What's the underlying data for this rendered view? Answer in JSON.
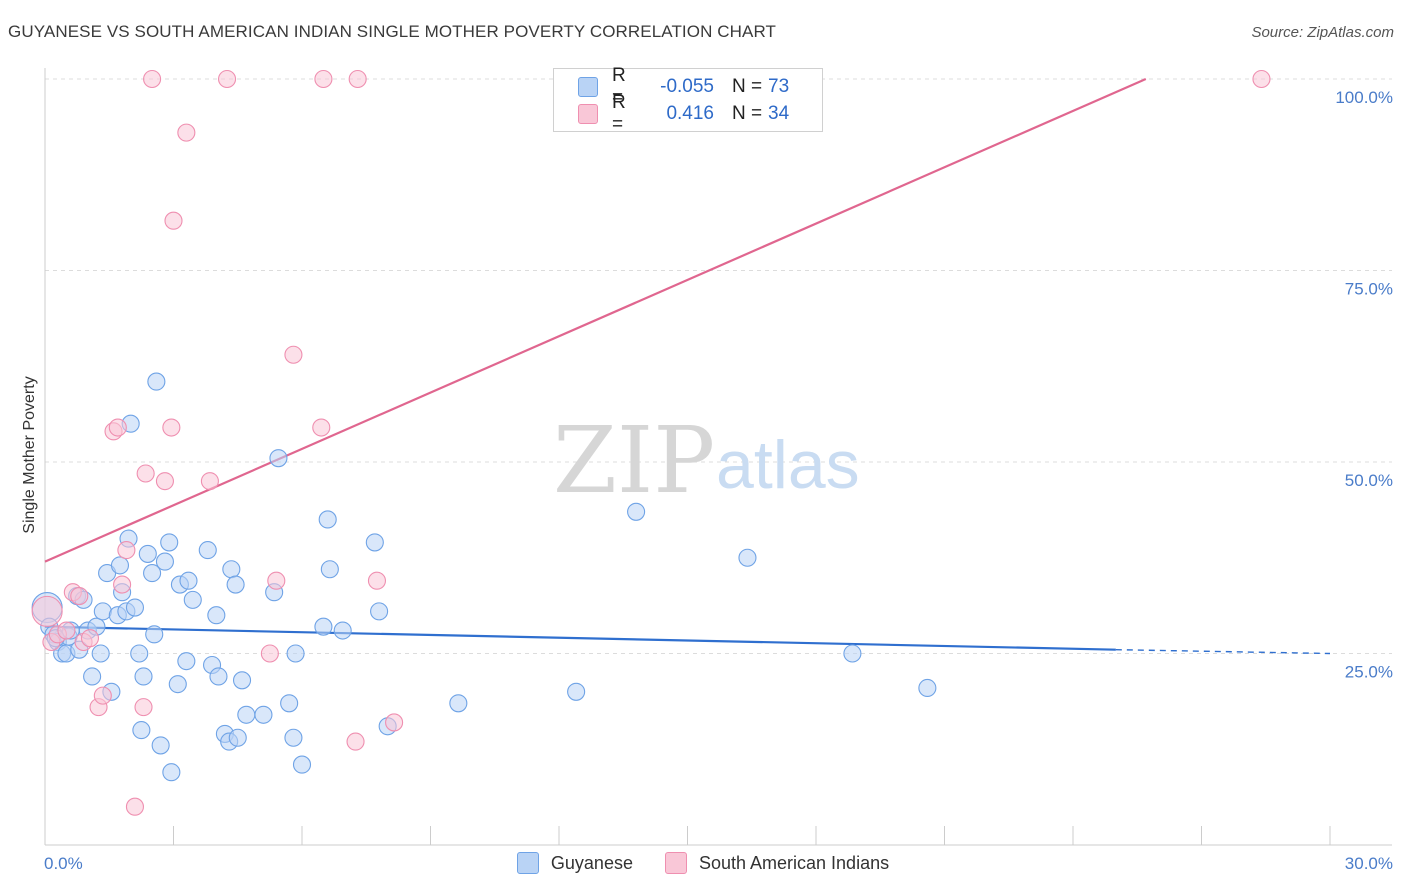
{
  "title": "GUYANESE VS SOUTH AMERICAN INDIAN SINGLE MOTHER POVERTY CORRELATION CHART",
  "source": "Source: ZipAtlas.com",
  "watermark": {
    "zip": "ZIP",
    "atlas": "atlas"
  },
  "legend": {
    "rows": [
      {
        "r_label": "R =",
        "r_value": "-0.055",
        "n_label": "N =",
        "n_value": "73",
        "color": "#6fa3e6",
        "fill": "#b9d3f5"
      },
      {
        "r_label": "R =",
        "r_value": "0.416",
        "n_label": "N =",
        "n_value": "34",
        "color": "#ef8fb0",
        "fill": "#f9c7d7"
      }
    ]
  },
  "bottom_legend": [
    "Guyanese",
    "South American Indians"
  ],
  "chart_data": {
    "type": "scatter",
    "title": "GUYANESE VS SOUTH AMERICAN INDIAN SINGLE MOTHER POVERTY CORRELATION CHART",
    "xlabel": "",
    "ylabel": "Single Mother Poverty",
    "xlim": [
      0,
      30
    ],
    "ylim": [
      0,
      105
    ],
    "x_tick_labels": [
      "0.0%",
      "30.0%"
    ],
    "y_ticks": [
      25,
      50,
      75,
      100
    ],
    "y_tick_labels": [
      "25.0%",
      "50.0%",
      "75.0%",
      "100.0%"
    ],
    "grid": true,
    "series": [
      {
        "name": "Guyanese",
        "color": "#6fa3e6",
        "fill": "#b9d3f5",
        "trend": {
          "x0": 0,
          "y0": 28.5,
          "x1": 25,
          "y1": 25.5,
          "dash_to_x": 30,
          "dash_to_y": 25.0
        },
        "points": [
          [
            0.05,
            31.0
          ],
          [
            0.1,
            28.5
          ],
          [
            0.2,
            27.5
          ],
          [
            0.3,
            26.5
          ],
          [
            0.4,
            25.0
          ],
          [
            0.5,
            25.0
          ],
          [
            0.55,
            27.2
          ],
          [
            0.6,
            28.0
          ],
          [
            0.75,
            32.5
          ],
          [
            0.8,
            25.5
          ],
          [
            0.9,
            32.0
          ],
          [
            1.0,
            28.0
          ],
          [
            1.1,
            22.0
          ],
          [
            1.2,
            28.5
          ],
          [
            1.3,
            25.0
          ],
          [
            1.35,
            30.5
          ],
          [
            1.45,
            35.5
          ],
          [
            1.55,
            20.0
          ],
          [
            1.7,
            30.0
          ],
          [
            1.75,
            36.5
          ],
          [
            1.8,
            33.0
          ],
          [
            1.9,
            30.5
          ],
          [
            1.95,
            40.0
          ],
          [
            2.0,
            55.0
          ],
          [
            2.1,
            31.0
          ],
          [
            2.2,
            25.0
          ],
          [
            2.25,
            15.0
          ],
          [
            2.3,
            22.0
          ],
          [
            2.4,
            38.0
          ],
          [
            2.5,
            35.5
          ],
          [
            2.55,
            27.5
          ],
          [
            2.6,
            60.5
          ],
          [
            2.7,
            13.0
          ],
          [
            2.8,
            37.0
          ],
          [
            2.9,
            39.5
          ],
          [
            2.95,
            9.5
          ],
          [
            3.1,
            21.0
          ],
          [
            3.15,
            34.0
          ],
          [
            3.3,
            24.0
          ],
          [
            3.35,
            34.5
          ],
          [
            3.45,
            32.0
          ],
          [
            3.8,
            38.5
          ],
          [
            3.9,
            23.5
          ],
          [
            4.0,
            30.0
          ],
          [
            4.05,
            22.0
          ],
          [
            4.2,
            14.5
          ],
          [
            4.3,
            13.5
          ],
          [
            4.35,
            36.0
          ],
          [
            4.45,
            34.0
          ],
          [
            4.5,
            14.0
          ],
          [
            4.6,
            21.5
          ],
          [
            4.7,
            17.0
          ],
          [
            5.1,
            17.0
          ],
          [
            5.35,
            33.0
          ],
          [
            5.45,
            50.5
          ],
          [
            5.7,
            18.5
          ],
          [
            5.8,
            14.0
          ],
          [
            5.85,
            25.0
          ],
          [
            6.0,
            10.5
          ],
          [
            6.5,
            28.5
          ],
          [
            6.6,
            42.5
          ],
          [
            6.65,
            36.0
          ],
          [
            6.95,
            28.0
          ],
          [
            7.7,
            39.5
          ],
          [
            7.8,
            30.5
          ],
          [
            8.0,
            15.5
          ],
          [
            9.65,
            18.5
          ],
          [
            12.4,
            20.0
          ],
          [
            13.8,
            43.5
          ],
          [
            16.4,
            37.5
          ],
          [
            18.85,
            25.0
          ],
          [
            20.6,
            20.5
          ],
          [
            0.25,
            27.0
          ]
        ]
      },
      {
        "name": "South American Indians",
        "color": "#ef8fb0",
        "fill": "#f9c7d7",
        "trend": {
          "x0": 0,
          "y0": 37.0,
          "x1": 25.7,
          "y1": 100.0
        },
        "points": [
          [
            0.05,
            30.5
          ],
          [
            0.15,
            26.5
          ],
          [
            0.3,
            27.5
          ],
          [
            0.5,
            28.0
          ],
          [
            0.65,
            33.0
          ],
          [
            0.8,
            32.5
          ],
          [
            0.9,
            26.5
          ],
          [
            1.05,
            27.0
          ],
          [
            1.25,
            18.0
          ],
          [
            1.35,
            19.5
          ],
          [
            1.6,
            54.0
          ],
          [
            1.7,
            54.5
          ],
          [
            1.8,
            34.0
          ],
          [
            1.9,
            38.5
          ],
          [
            2.1,
            5.0
          ],
          [
            2.3,
            18.0
          ],
          [
            2.35,
            48.5
          ],
          [
            2.5,
            100.0
          ],
          [
            2.8,
            47.5
          ],
          [
            2.95,
            54.5
          ],
          [
            3.0,
            81.5
          ],
          [
            3.3,
            93.0
          ],
          [
            3.85,
            47.5
          ],
          [
            4.25,
            100.0
          ],
          [
            5.25,
            25.0
          ],
          [
            5.4,
            34.5
          ],
          [
            5.8,
            64.0
          ],
          [
            6.45,
            54.5
          ],
          [
            6.5,
            100.0
          ],
          [
            7.25,
            13.5
          ],
          [
            7.3,
            100.0
          ],
          [
            7.75,
            34.5
          ],
          [
            8.15,
            16.0
          ],
          [
            28.4,
            100.0
          ]
        ]
      }
    ]
  }
}
